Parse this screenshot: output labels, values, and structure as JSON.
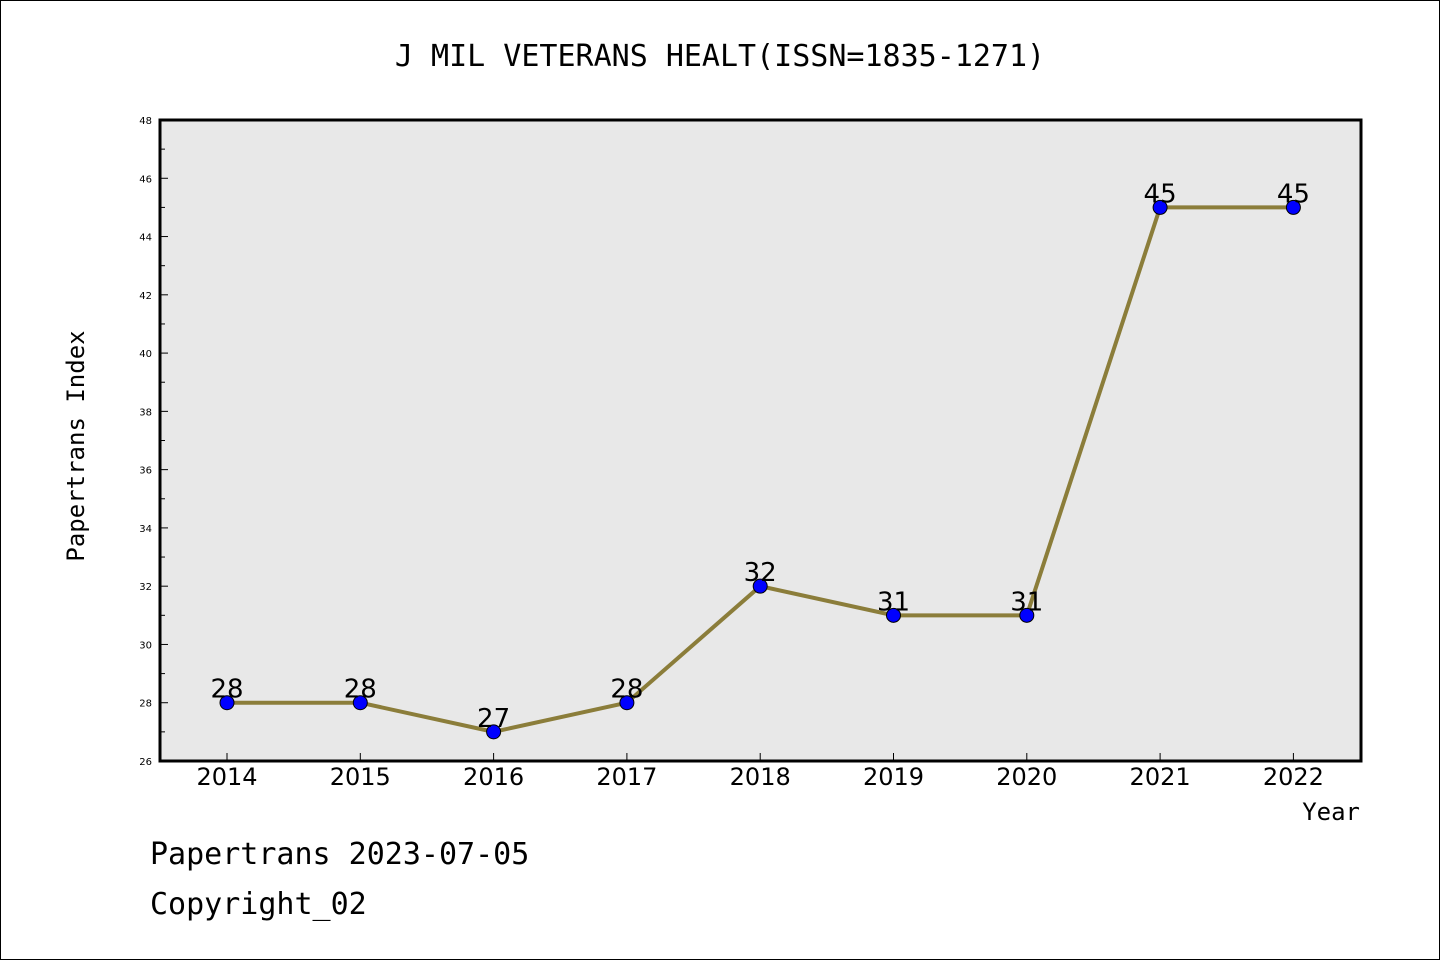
{
  "chart_data": {
    "type": "line",
    "title": "J MIL VETERANS HEALT(ISSN=1835-1271)",
    "xlabel": "Year",
    "ylabel": "Papertrans Index",
    "categories": [
      "2014",
      "2015",
      "2016",
      "2017",
      "2018",
      "2019",
      "2020",
      "2021",
      "2022"
    ],
    "series": [
      {
        "values": [
          28,
          28,
          27,
          28,
          32,
          31,
          31,
          45,
          45
        ]
      }
    ],
    "data_labels": [
      "28",
      "28",
      "27",
      "28",
      "32",
      "31",
      "31",
      "45",
      "45"
    ],
    "ylim": [
      26,
      48
    ],
    "yticks": [
      "26",
      "28",
      "30",
      "32",
      "34",
      "36",
      "38",
      "40",
      "42",
      "44",
      "46",
      "48"
    ],
    "grid": false,
    "line_color": "#8b7d3a",
    "marker_color": "#0000ff",
    "plot_background": "#e8e8e8"
  },
  "footer": {
    "line1": "Papertrans 2023-07-05",
    "line2": "Copyright_02"
  }
}
